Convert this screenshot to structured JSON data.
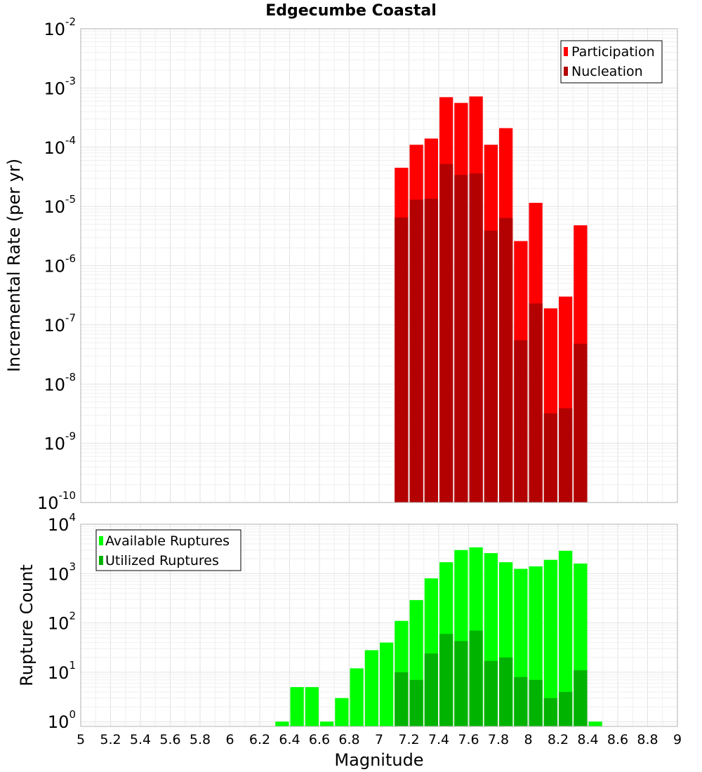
{
  "chart_data": [
    {
      "type": "bar",
      "title": "Edgecumbe Coastal",
      "xlabel": "",
      "ylabel": "Incremental Rate (per yr)",
      "yscale": "log",
      "ylim": [
        1e-10,
        0.01
      ],
      "xlim": [
        5,
        9
      ],
      "grid": true,
      "legend_position": "top-right",
      "bin_width": 0.1,
      "x": [
        7.15,
        7.25,
        7.35,
        7.45,
        7.55,
        7.65,
        7.75,
        7.85,
        7.95,
        8.05,
        8.15,
        8.25,
        8.35
      ],
      "series": [
        {
          "name": "Participation",
          "color": "#ff0000",
          "values": [
            4.5e-05,
            0.00011,
            0.00014,
            0.0007,
            0.00056,
            0.00072,
            0.00011,
            0.00021,
            2.6e-06,
            1.15e-05,
            1.9e-07,
            3e-07,
            4.8e-06
          ]
        },
        {
          "name": "Nucleation",
          "color": "#b30000",
          "values": [
            6.5e-06,
            1.3e-05,
            1.35e-05,
            5.2e-05,
            3.4e-05,
            3.6e-05,
            3.9e-06,
            6.4e-06,
            5.5e-08,
            2.3e-07,
            3.2e-09,
            3.9e-09,
            4.8e-08
          ]
        }
      ]
    },
    {
      "type": "bar",
      "title": "",
      "xlabel": "Magnitude",
      "ylabel": "Rupture Count",
      "yscale": "log",
      "ylim": [
        0.8,
        10000
      ],
      "xlim": [
        5,
        9
      ],
      "grid": true,
      "legend_position": "top-left",
      "bin_width": 0.1,
      "x": [
        6.35,
        6.45,
        6.55,
        6.65,
        6.75,
        6.85,
        6.95,
        7.05,
        7.15,
        7.25,
        7.35,
        7.45,
        7.55,
        7.65,
        7.75,
        7.85,
        7.95,
        8.05,
        8.15,
        8.25,
        8.35,
        8.45
      ],
      "series": [
        {
          "name": "Available Ruptures",
          "color": "#00ff00",
          "values": [
            1,
            5,
            5,
            1,
            3,
            12,
            28,
            40,
            110,
            290,
            800,
            1700,
            3000,
            3400,
            2600,
            1700,
            1250,
            1400,
            1900,
            2900,
            1600,
            1
          ]
        },
        {
          "name": "Utilized Ruptures",
          "color": "#00b300",
          "values": [
            0,
            0,
            0,
            0,
            0,
            0,
            0,
            0,
            10,
            7,
            24,
            60,
            43,
            70,
            17,
            20,
            8,
            7,
            3,
            4,
            11,
            0
          ]
        }
      ]
    }
  ],
  "xticks": [
    "5",
    "5.2",
    "5.4",
    "5.6",
    "5.8",
    "6",
    "6.2",
    "6.4",
    "6.6",
    "6.8",
    "7",
    "7.2",
    "7.4",
    "7.6",
    "7.8",
    "8",
    "8.2",
    "8.4",
    "8.6",
    "8.8",
    "9"
  ],
  "top_yticks": {
    "base": "10",
    "exponents": [
      "-10",
      "-9",
      "-8",
      "-7",
      "-6",
      "-5",
      "-4",
      "-3",
      "-2"
    ]
  },
  "bottom_yticks": {
    "base": "10",
    "exponents": [
      "0",
      "1",
      "2",
      "3",
      "4"
    ]
  }
}
